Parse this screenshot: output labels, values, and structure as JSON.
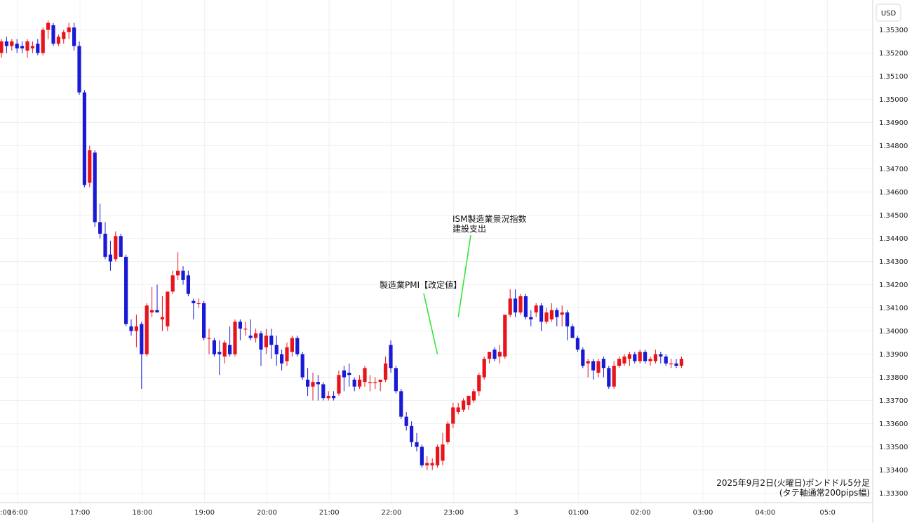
{
  "chart_data": {
    "type": "candlestick",
    "currency_label": "USD",
    "caption_line1": "2025年9月2日(火曜日)ポンドドル5分足",
    "caption_line2": "(タテ軸通常200pips幅)",
    "ylim": [
      1.3326,
      1.3537
    ],
    "grid": true,
    "y_ticks": [
      "1.35300",
      "1.35200",
      "1.35100",
      "1.35000",
      "1.34900",
      "1.34800",
      "1.34700",
      "1.34600",
      "1.34500",
      "1.34400",
      "1.34300",
      "1.34200",
      "1.34100",
      "1.34000",
      "1.33900",
      "1.33800",
      "1.33700",
      "1.33600",
      "1.33500",
      "1.33400",
      "1.33300"
    ],
    "x_ticks": [
      {
        "label": ":00",
        "slot": -9
      },
      {
        "label": "16:00",
        "slot": 3
      },
      {
        "label": "17:00",
        "slot": 15
      },
      {
        "label": "18:00",
        "slot": 27
      },
      {
        "label": "19:00",
        "slot": 39
      },
      {
        "label": "20:00",
        "slot": 51
      },
      {
        "label": "21:00",
        "slot": 63
      },
      {
        "label": "22:00",
        "slot": 75
      },
      {
        "label": "23:00",
        "slot": 87
      },
      {
        "label": "3",
        "slot": 99
      },
      {
        "label": "01:00",
        "slot": 111
      },
      {
        "label": "02:00",
        "slot": 123
      },
      {
        "label": "03:00",
        "slot": 135
      },
      {
        "label": "04:00",
        "slot": 147
      },
      {
        "label": "05:0",
        "slot": 159
      }
    ],
    "annotations": [
      {
        "lines": [
          "製造業PMI【改定値】"
        ],
        "at_slot": 84,
        "price": 1.339
      },
      {
        "lines": [
          "ISM製造業景況指数",
          "建設支出"
        ],
        "at_slot": 88,
        "price": 1.3406
      }
    ],
    "candles": [
      {
        "o": 1.352,
        "h": 1.3526,
        "l": 1.3518,
        "c": 1.3525
      },
      {
        "o": 1.3525,
        "h": 1.3527,
        "l": 1.352,
        "c": 1.3523
      },
      {
        "o": 1.3523,
        "h": 1.3526,
        "l": 1.3521,
        "c": 1.3525
      },
      {
        "o": 1.3524,
        "h": 1.3526,
        "l": 1.352,
        "c": 1.3522
      },
      {
        "o": 1.3523,
        "h": 1.3525,
        "l": 1.352,
        "c": 1.3522
      },
      {
        "o": 1.3521,
        "h": 1.3526,
        "l": 1.3518,
        "c": 1.3525
      },
      {
        "o": 1.3522,
        "h": 1.3525,
        "l": 1.352,
        "c": 1.3523
      },
      {
        "o": 1.3524,
        "h": 1.3526,
        "l": 1.3519,
        "c": 1.352
      },
      {
        "o": 1.352,
        "h": 1.3531,
        "l": 1.3519,
        "c": 1.353
      },
      {
        "o": 1.353,
        "h": 1.3534,
        "l": 1.3526,
        "c": 1.3533
      },
      {
        "o": 1.3532,
        "h": 1.3533,
        "l": 1.3523,
        "c": 1.3524
      },
      {
        "o": 1.3524,
        "h": 1.3528,
        "l": 1.3523,
        "c": 1.3527
      },
      {
        "o": 1.3526,
        "h": 1.353,
        "l": 1.3524,
        "c": 1.3529
      },
      {
        "o": 1.3529,
        "h": 1.3533,
        "l": 1.3526,
        "c": 1.3531
      },
      {
        "o": 1.3531,
        "h": 1.3533,
        "l": 1.3521,
        "c": 1.3523
      },
      {
        "o": 1.3523,
        "h": 1.3525,
        "l": 1.3502,
        "c": 1.3503
      },
      {
        "o": 1.3503,
        "h": 1.3504,
        "l": 1.3462,
        "c": 1.3463
      },
      {
        "o": 1.3464,
        "h": 1.348,
        "l": 1.3462,
        "c": 1.3478
      },
      {
        "o": 1.3477,
        "h": 1.3478,
        "l": 1.3445,
        "c": 1.3447
      },
      {
        "o": 1.3447,
        "h": 1.3455,
        "l": 1.344,
        "c": 1.3442
      },
      {
        "o": 1.3442,
        "h": 1.3447,
        "l": 1.3431,
        "c": 1.3432
      },
      {
        "o": 1.3433,
        "h": 1.3439,
        "l": 1.3426,
        "c": 1.343
      },
      {
        "o": 1.3431,
        "h": 1.3443,
        "l": 1.343,
        "c": 1.3441
      },
      {
        "o": 1.3441,
        "h": 1.3442,
        "l": 1.3432,
        "c": 1.3432
      },
      {
        "o": 1.3432,
        "h": 1.3433,
        "l": 1.3402,
        "c": 1.3403
      },
      {
        "o": 1.3402,
        "h": 1.3405,
        "l": 1.3398,
        "c": 1.34
      },
      {
        "o": 1.34,
        "h": 1.3407,
        "l": 1.3393,
        "c": 1.3402
      },
      {
        "o": 1.3403,
        "h": 1.3404,
        "l": 1.3375,
        "c": 1.339
      },
      {
        "o": 1.339,
        "h": 1.3412,
        "l": 1.3389,
        "c": 1.3411
      },
      {
        "o": 1.3408,
        "h": 1.3419,
        "l": 1.3406,
        "c": 1.3409
      },
      {
        "o": 1.3409,
        "h": 1.342,
        "l": 1.3408,
        "c": 1.3408
      },
      {
        "o": 1.3405,
        "h": 1.3415,
        "l": 1.34,
        "c": 1.3406
      },
      {
        "o": 1.3402,
        "h": 1.3417,
        "l": 1.34,
        "c": 1.3417
      },
      {
        "o": 1.3417,
        "h": 1.3426,
        "l": 1.3416,
        "c": 1.3424
      },
      {
        "o": 1.3424,
        "h": 1.3434,
        "l": 1.3422,
        "c": 1.3426
      },
      {
        "o": 1.3426,
        "h": 1.3428,
        "l": 1.342,
        "c": 1.3422
      },
      {
        "o": 1.3424,
        "h": 1.3426,
        "l": 1.3415,
        "c": 1.3416
      },
      {
        "o": 1.3413,
        "h": 1.3414,
        "l": 1.3405,
        "c": 1.3412
      },
      {
        "o": 1.3412,
        "h": 1.3414,
        "l": 1.341,
        "c": 1.3412
      },
      {
        "o": 1.3412,
        "h": 1.3413,
        "l": 1.3396,
        "c": 1.3397
      },
      {
        "o": 1.3397,
        "h": 1.3401,
        "l": 1.339,
        "c": 1.3397
      },
      {
        "o": 1.3396,
        "h": 1.3397,
        "l": 1.3389,
        "c": 1.339
      },
      {
        "o": 1.3391,
        "h": 1.3396,
        "l": 1.3381,
        "c": 1.339
      },
      {
        "o": 1.3389,
        "h": 1.3396,
        "l": 1.3386,
        "c": 1.3395
      },
      {
        "o": 1.3394,
        "h": 1.3402,
        "l": 1.3389,
        "c": 1.339
      },
      {
        "o": 1.339,
        "h": 1.3405,
        "l": 1.3389,
        "c": 1.3404
      },
      {
        "o": 1.3404,
        "h": 1.3405,
        "l": 1.3396,
        "c": 1.3401
      },
      {
        "o": 1.3401,
        "h": 1.3404,
        "l": 1.3398,
        "c": 1.3401
      },
      {
        "o": 1.3398,
        "h": 1.3405,
        "l": 1.3396,
        "c": 1.3397
      },
      {
        "o": 1.3397,
        "h": 1.3401,
        "l": 1.3395,
        "c": 1.3399
      },
      {
        "o": 1.3399,
        "h": 1.34,
        "l": 1.3385,
        "c": 1.3392
      },
      {
        "o": 1.3393,
        "h": 1.3401,
        "l": 1.339,
        "c": 1.3398
      },
      {
        "o": 1.3398,
        "h": 1.3401,
        "l": 1.3388,
        "c": 1.3394
      },
      {
        "o": 1.3394,
        "h": 1.3398,
        "l": 1.3385,
        "c": 1.339
      },
      {
        "o": 1.339,
        "h": 1.3392,
        "l": 1.3383,
        "c": 1.3386
      },
      {
        "o": 1.3387,
        "h": 1.3395,
        "l": 1.3385,
        "c": 1.3393
      },
      {
        "o": 1.3391,
        "h": 1.3398,
        "l": 1.3389,
        "c": 1.3397
      },
      {
        "o": 1.3397,
        "h": 1.3398,
        "l": 1.3389,
        "c": 1.339
      },
      {
        "o": 1.339,
        "h": 1.3391,
        "l": 1.3379,
        "c": 1.338
      },
      {
        "o": 1.3379,
        "h": 1.3384,
        "l": 1.3372,
        "c": 1.3376
      },
      {
        "o": 1.3376,
        "h": 1.3382,
        "l": 1.337,
        "c": 1.3378
      },
      {
        "o": 1.3378,
        "h": 1.3381,
        "l": 1.337,
        "c": 1.3377
      },
      {
        "o": 1.3377,
        "h": 1.3378,
        "l": 1.337,
        "c": 1.3371
      },
      {
        "o": 1.3371,
        "h": 1.3374,
        "l": 1.337,
        "c": 1.3372
      },
      {
        "o": 1.3372,
        "h": 1.3374,
        "l": 1.337,
        "c": 1.3371
      },
      {
        "o": 1.3373,
        "h": 1.3383,
        "l": 1.3372,
        "c": 1.3381
      },
      {
        "o": 1.3383,
        "h": 1.3385,
        "l": 1.3374,
        "c": 1.338
      },
      {
        "o": 1.3382,
        "h": 1.3386,
        "l": 1.3376,
        "c": 1.3381
      },
      {
        "o": 1.3379,
        "h": 1.338,
        "l": 1.3374,
        "c": 1.3376
      },
      {
        "o": 1.3376,
        "h": 1.3381,
        "l": 1.3375,
        "c": 1.3379
      },
      {
        "o": 1.3378,
        "h": 1.3385,
        "l": 1.3376,
        "c": 1.3384
      },
      {
        "o": 1.3378,
        "h": 1.3381,
        "l": 1.3374,
        "c": 1.3378
      },
      {
        "o": 1.3378,
        "h": 1.338,
        "l": 1.3375,
        "c": 1.3378
      },
      {
        "o": 1.3378,
        "h": 1.3379,
        "l": 1.3374,
        "c": 1.3379
      },
      {
        "o": 1.3379,
        "h": 1.3389,
        "l": 1.3378,
        "c": 1.3386
      },
      {
        "o": 1.3394,
        "h": 1.3396,
        "l": 1.3382,
        "c": 1.3384
      },
      {
        "o": 1.3384,
        "h": 1.3385,
        "l": 1.3373,
        "c": 1.3374
      },
      {
        "o": 1.3374,
        "h": 1.3375,
        "l": 1.3362,
        "c": 1.3363
      },
      {
        "o": 1.3363,
        "h": 1.3365,
        "l": 1.3357,
        "c": 1.3359
      },
      {
        "o": 1.3359,
        "h": 1.3361,
        "l": 1.335,
        "c": 1.3352
      },
      {
        "o": 1.3352,
        "h": 1.3356,
        "l": 1.3348,
        "c": 1.335
      },
      {
        "o": 1.335,
        "h": 1.3351,
        "l": 1.3341,
        "c": 1.3342
      },
      {
        "o": 1.3342,
        "h": 1.3346,
        "l": 1.334,
        "c": 1.3343
      },
      {
        "o": 1.3342,
        "h": 1.3345,
        "l": 1.334,
        "c": 1.3343
      },
      {
        "o": 1.3342,
        "h": 1.3351,
        "l": 1.3341,
        "c": 1.335
      },
      {
        "o": 1.3344,
        "h": 1.3356,
        "l": 1.3342,
        "c": 1.3351
      },
      {
        "o": 1.3352,
        "h": 1.3361,
        "l": 1.3351,
        "c": 1.336
      },
      {
        "o": 1.336,
        "h": 1.3369,
        "l": 1.3358,
        "c": 1.3367
      },
      {
        "o": 1.3365,
        "h": 1.3369,
        "l": 1.3364,
        "c": 1.3367
      },
      {
        "o": 1.3366,
        "h": 1.3371,
        "l": 1.3365,
        "c": 1.337
      },
      {
        "o": 1.3368,
        "h": 1.3372,
        "l": 1.3366,
        "c": 1.3372
      },
      {
        "o": 1.337,
        "h": 1.3375,
        "l": 1.3369,
        "c": 1.3374
      },
      {
        "o": 1.3374,
        "h": 1.3382,
        "l": 1.3372,
        "c": 1.3381
      },
      {
        "o": 1.338,
        "h": 1.3389,
        "l": 1.3379,
        "c": 1.3388
      },
      {
        "o": 1.3388,
        "h": 1.3391,
        "l": 1.3386,
        "c": 1.3391
      },
      {
        "o": 1.3392,
        "h": 1.3393,
        "l": 1.3387,
        "c": 1.3388
      },
      {
        "o": 1.3389,
        "h": 1.3394,
        "l": 1.3386,
        "c": 1.3391
      },
      {
        "o": 1.3389,
        "h": 1.3407,
        "l": 1.3388,
        "c": 1.3407
      },
      {
        "o": 1.3407,
        "h": 1.3418,
        "l": 1.3406,
        "c": 1.3414
      },
      {
        "o": 1.3414,
        "h": 1.3418,
        "l": 1.3406,
        "c": 1.3408
      },
      {
        "o": 1.3408,
        "h": 1.3416,
        "l": 1.3407,
        "c": 1.3415
      },
      {
        "o": 1.3415,
        "h": 1.3416,
        "l": 1.3405,
        "c": 1.3406
      },
      {
        "o": 1.3406,
        "h": 1.3409,
        "l": 1.3402,
        "c": 1.3405
      },
      {
        "o": 1.3408,
        "h": 1.3412,
        "l": 1.3406,
        "c": 1.3411
      },
      {
        "o": 1.3411,
        "h": 1.3412,
        "l": 1.34,
        "c": 1.3404
      },
      {
        "o": 1.3404,
        "h": 1.341,
        "l": 1.3403,
        "c": 1.3408
      },
      {
        "o": 1.3405,
        "h": 1.3412,
        "l": 1.3404,
        "c": 1.3409
      },
      {
        "o": 1.3409,
        "h": 1.341,
        "l": 1.3402,
        "c": 1.3406
      },
      {
        "o": 1.3407,
        "h": 1.3411,
        "l": 1.3402,
        "c": 1.3408
      },
      {
        "o": 1.3408,
        "h": 1.3409,
        "l": 1.3396,
        "c": 1.3402
      },
      {
        "o": 1.3402,
        "h": 1.3403,
        "l": 1.3397,
        "c": 1.3397
      },
      {
        "o": 1.3397,
        "h": 1.3398,
        "l": 1.3391,
        "c": 1.3392
      },
      {
        "o": 1.3392,
        "h": 1.3393,
        "l": 1.3384,
        "c": 1.3385
      },
      {
        "o": 1.3386,
        "h": 1.3388,
        "l": 1.338,
        "c": 1.3387
      },
      {
        "o": 1.3387,
        "h": 1.3388,
        "l": 1.3379,
        "c": 1.3383
      },
      {
        "o": 1.3382,
        "h": 1.3388,
        "l": 1.338,
        "c": 1.3387
      },
      {
        "o": 1.3388,
        "h": 1.3389,
        "l": 1.338,
        "c": 1.3384
      },
      {
        "o": 1.3384,
        "h": 1.3385,
        "l": 1.3375,
        "c": 1.3376
      },
      {
        "o": 1.3376,
        "h": 1.3387,
        "l": 1.3375,
        "c": 1.3385
      },
      {
        "o": 1.3385,
        "h": 1.3389,
        "l": 1.3384,
        "c": 1.3388
      },
      {
        "o": 1.3386,
        "h": 1.339,
        "l": 1.3385,
        "c": 1.3389
      },
      {
        "o": 1.3388,
        "h": 1.3391,
        "l": 1.3385,
        "c": 1.339
      },
      {
        "o": 1.339,
        "h": 1.3391,
        "l": 1.3386,
        "c": 1.3387
      },
      {
        "o": 1.3387,
        "h": 1.3392,
        "l": 1.3386,
        "c": 1.3391
      },
      {
        "o": 1.3391,
        "h": 1.3392,
        "l": 1.3386,
        "c": 1.3387
      },
      {
        "o": 1.3387,
        "h": 1.3389,
        "l": 1.3385,
        "c": 1.3388
      },
      {
        "o": 1.3387,
        "h": 1.3392,
        "l": 1.3386,
        "c": 1.339
      },
      {
        "o": 1.339,
        "h": 1.3391,
        "l": 1.3386,
        "c": 1.3389
      },
      {
        "o": 1.3389,
        "h": 1.339,
        "l": 1.3385,
        "c": 1.3386
      },
      {
        "o": 1.3386,
        "h": 1.3388,
        "l": 1.3384,
        "c": 1.3386
      },
      {
        "o": 1.3386,
        "h": 1.3388,
        "l": 1.3384,
        "c": 1.3385
      },
      {
        "o": 1.3385,
        "h": 1.3389,
        "l": 1.3384,
        "c": 1.3388
      }
    ]
  }
}
